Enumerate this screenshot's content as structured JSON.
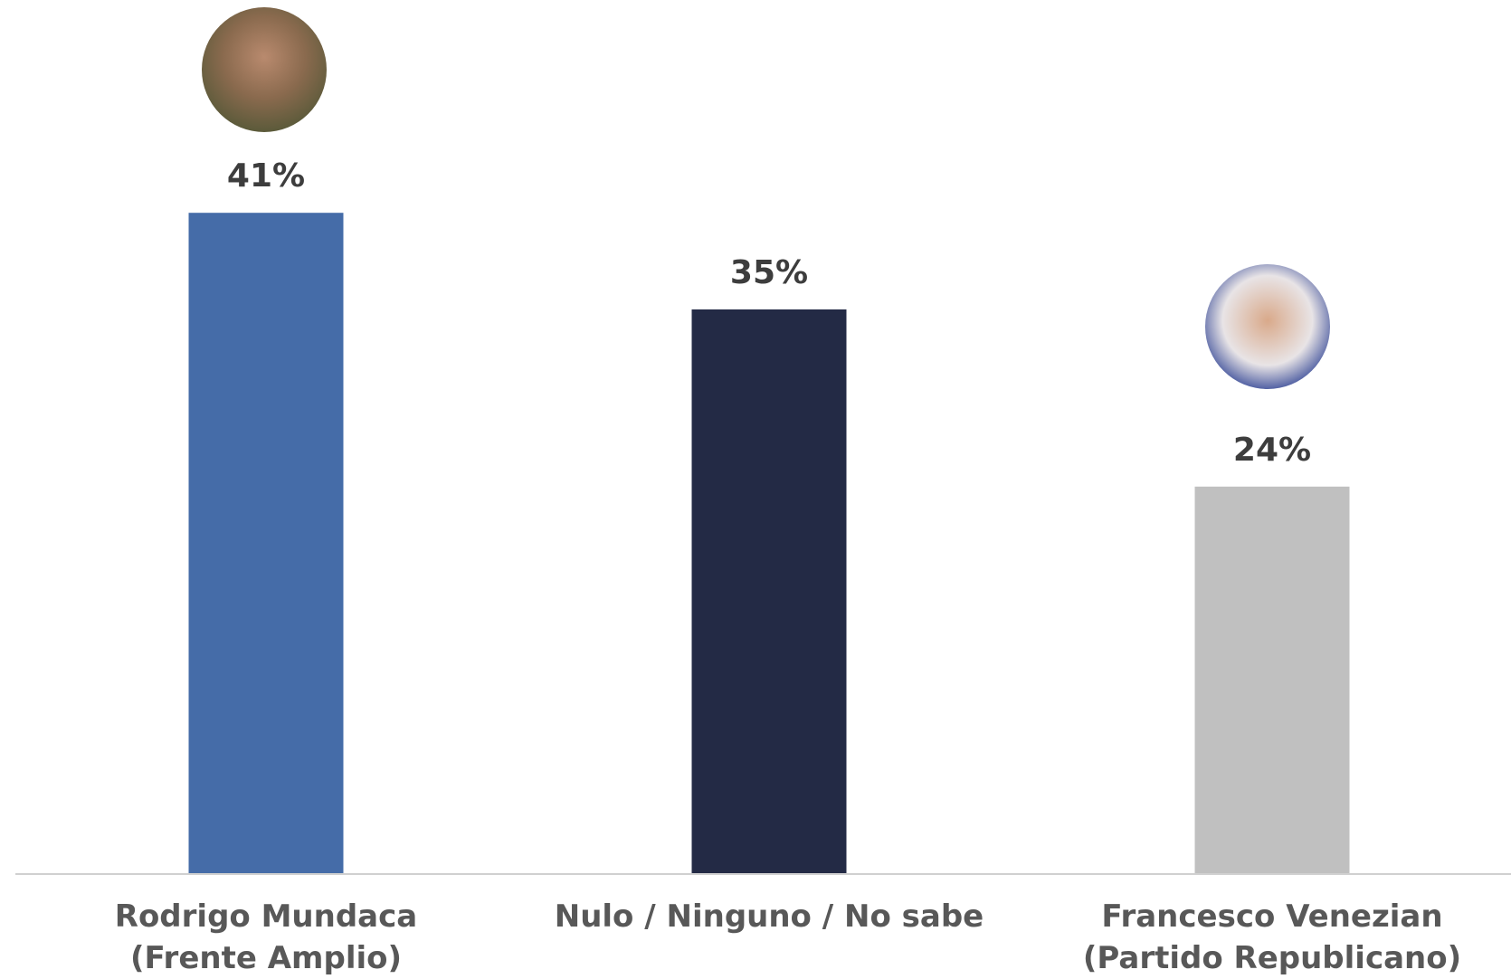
{
  "chart_data": {
    "type": "bar",
    "categories": [
      "Rodrigo Mundaca\n(Frente Amplio)",
      "Nulo / Ninguno / No sabe",
      "Francesco Venezian\n(Partido Republicano)"
    ],
    "values": [
      41,
      35,
      24
    ],
    "value_labels": [
      "41%",
      "35%",
      "24%"
    ],
    "colors": [
      "#456ca8",
      "#232a45",
      "#c0c0c0"
    ]
  }
}
